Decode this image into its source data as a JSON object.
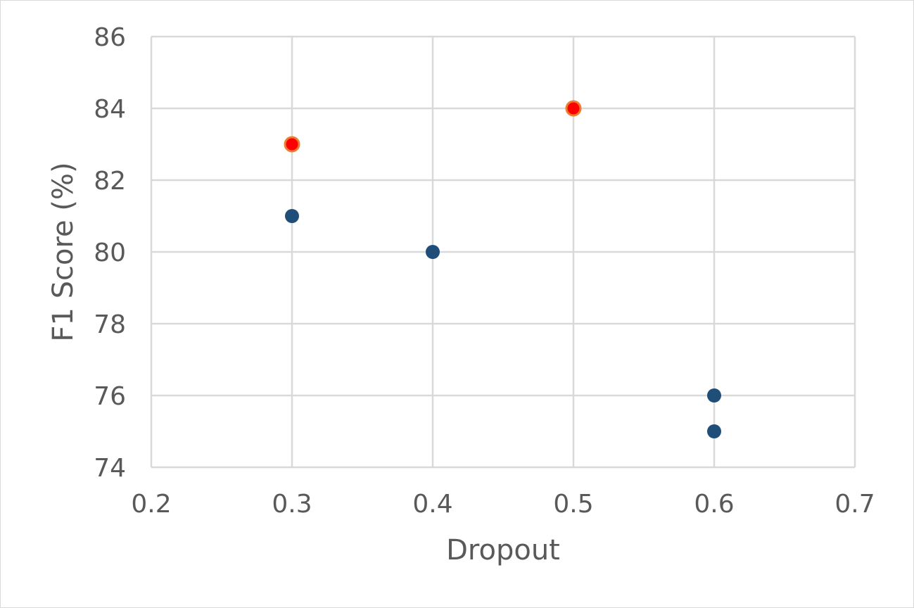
{
  "chart_data": {
    "type": "scatter",
    "title": "",
    "xlabel": "Dropout",
    "ylabel": "F1 Score (%)",
    "xlim": [
      0.2,
      0.7
    ],
    "ylim": [
      74,
      86
    ],
    "x_ticks": [
      "0.2",
      "0.3",
      "0.4",
      "0.5",
      "0.6",
      "0.7"
    ],
    "y_ticks": [
      "74",
      "76",
      "78",
      "80",
      "82",
      "84",
      "86"
    ],
    "grid": true,
    "legend": "none",
    "series": [
      {
        "color": "#1f4e79",
        "points": [
          {
            "x": 0.3,
            "y": 81
          },
          {
            "x": 0.4,
            "y": 80
          },
          {
            "x": 0.6,
            "y": 76
          },
          {
            "x": 0.6,
            "y": 75
          }
        ]
      },
      {
        "color": "#ff0000",
        "edge_color": "#ed7d31",
        "points": [
          {
            "x": 0.3,
            "y": 83
          },
          {
            "x": 0.5,
            "y": 84
          }
        ]
      }
    ]
  }
}
